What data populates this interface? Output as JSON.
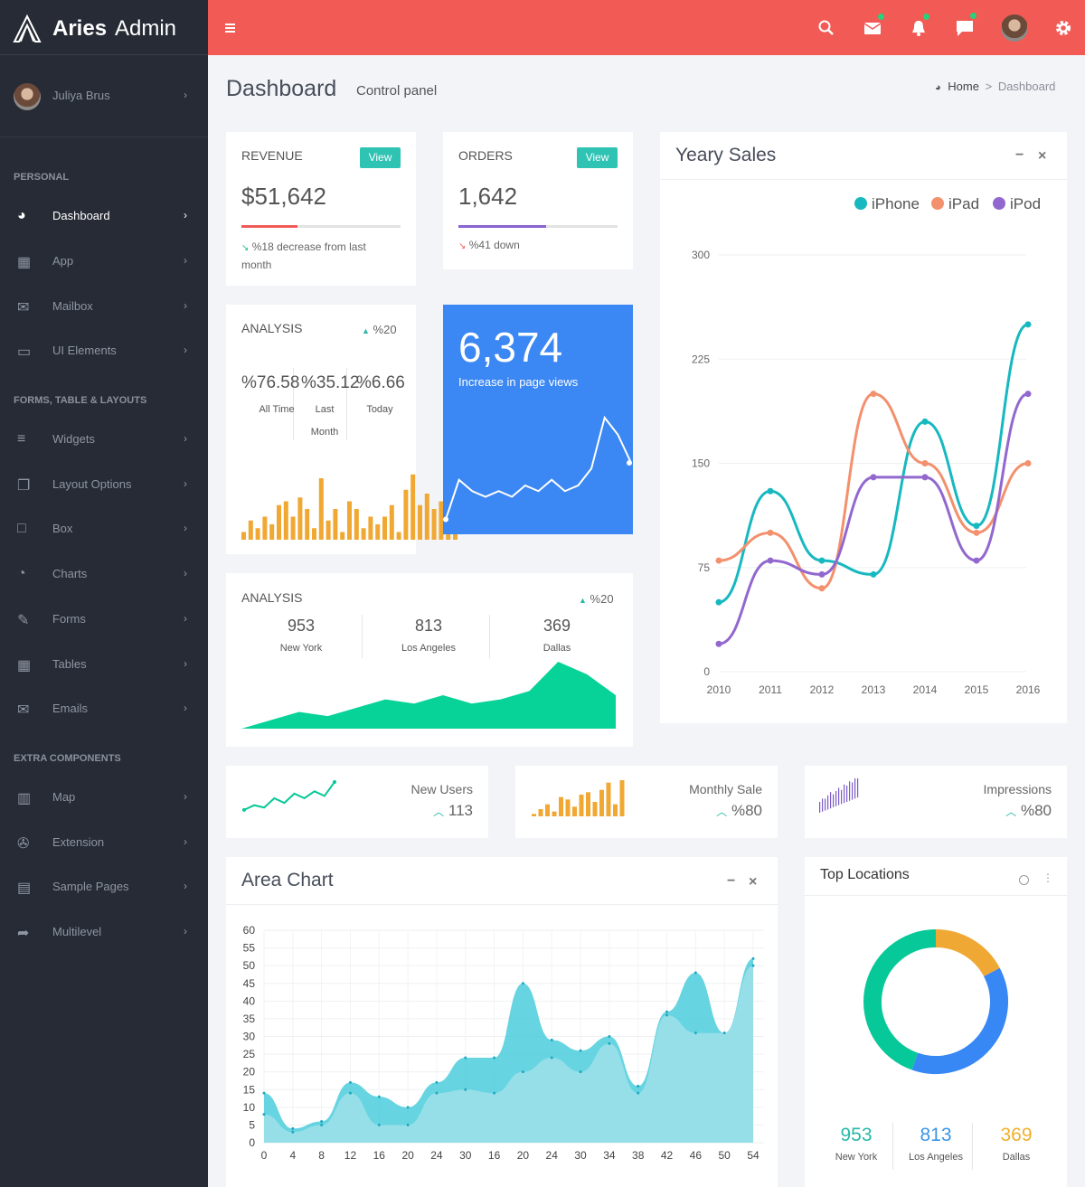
{
  "brand": {
    "bold": "Aries",
    "light": "Admin"
  },
  "user": {
    "name": "Juliya Brus"
  },
  "sidebar": {
    "sections": [
      "PERSONAL",
      "FORMS, TABLE & LAYOUTS",
      "EXTRA COMPONENTS"
    ],
    "items": [
      {
        "label": "Dashboard",
        "icon": "dashboard-icon"
      },
      {
        "label": "App",
        "icon": "grid-icon"
      },
      {
        "label": "Mailbox",
        "icon": "envelope-icon"
      },
      {
        "label": "UI Elements",
        "icon": "laptop-icon"
      },
      {
        "label": "Widgets",
        "icon": "bars-icon"
      },
      {
        "label": "Layout Options",
        "icon": "files-icon"
      },
      {
        "label": "Box",
        "icon": "square-icon"
      },
      {
        "label": "Charts",
        "icon": "pie-icon"
      },
      {
        "label": "Forms",
        "icon": "edit-icon"
      },
      {
        "label": "Tables",
        "icon": "table-icon"
      },
      {
        "label": "Emails",
        "icon": "envelope-open-icon"
      },
      {
        "label": "Map",
        "icon": "map-icon"
      },
      {
        "label": "Extension",
        "icon": "plug-icon"
      },
      {
        "label": "Sample Pages",
        "icon": "file-icon"
      },
      {
        "label": "Multilevel",
        "icon": "share-icon"
      }
    ]
  },
  "header": {
    "icons": [
      "menu-icon",
      "search-icon",
      "mail-icon",
      "bell-icon",
      "chat-icon",
      "avatar",
      "gear-icon"
    ]
  },
  "page": {
    "title": "Dashboard",
    "subtitle": "Control panel",
    "breadcrumb_home": "Home",
    "breadcrumb_sep": ">",
    "breadcrumb_current": "Dashboard"
  },
  "revenue": {
    "title": "REVENUE",
    "button": "View",
    "value": "$51,642",
    "progress": 0.35,
    "note": "%18 decrease from last month",
    "color": "#f05b56"
  },
  "orders": {
    "title": "ORDERS",
    "button": "View",
    "value": "1,642",
    "progress": 0.55,
    "note": "%41 down",
    "color": "#8b63d1"
  },
  "analysis1": {
    "title": "ANALYSIS",
    "delta": "%20",
    "stats": [
      {
        "value": "%76.58",
        "label": "All Time"
      },
      {
        "value": "%35.12",
        "label": "Last Month"
      },
      {
        "value": "%6.66",
        "label": "Today"
      }
    ],
    "bars": [
      2,
      5,
      3,
      6,
      4,
      9,
      10,
      6,
      11,
      8,
      3,
      16,
      5,
      8,
      2,
      10,
      8,
      3,
      6,
      4,
      6,
      9,
      2,
      13,
      17,
      9,
      12,
      8,
      10,
      4,
      2
    ]
  },
  "pageviews": {
    "value": "6,374",
    "label": "Increase in page views",
    "line": [
      2,
      9,
      7,
      6,
      7,
      6,
      8,
      7,
      9,
      7,
      8,
      11,
      20,
      17,
      12
    ]
  },
  "analysis2": {
    "title": "ANALYSIS",
    "delta": "%20",
    "stats": [
      {
        "value": "953",
        "label": "New York"
      },
      {
        "value": "813",
        "label": "Los Angeles"
      },
      {
        "value": "369",
        "label": "Dallas"
      }
    ],
    "area": [
      0,
      2,
      4,
      3,
      5,
      7,
      6,
      8,
      6,
      7,
      9,
      16,
      13,
      8
    ]
  },
  "yearly": {
    "title": "Yeary Sales"
  },
  "chart_data": [
    {
      "type": "line",
      "title": "Yeary Sales",
      "x": [
        "2010",
        "2011",
        "2012",
        "2013",
        "2014",
        "2015",
        "2016"
      ],
      "ylim": [
        0,
        300
      ],
      "yticks": [
        0,
        75,
        150,
        225,
        300
      ],
      "series": [
        {
          "name": "iPhone",
          "color": "#17b8c0",
          "values": [
            50,
            130,
            80,
            70,
            180,
            105,
            250
          ]
        },
        {
          "name": "iPad",
          "color": "#f3906d",
          "values": [
            80,
            100,
            60,
            200,
            150,
            100,
            150
          ]
        },
        {
          "name": "iPod",
          "color": "#9268cf",
          "values": [
            20,
            80,
            70,
            140,
            140,
            80,
            200
          ]
        }
      ],
      "legend": "top-right"
    },
    {
      "type": "area",
      "title": "Area Chart",
      "x": [
        "0",
        "4",
        "8",
        "12",
        "16",
        "20",
        "24",
        "30",
        "16",
        "20",
        "24",
        "30",
        "34",
        "38",
        "42",
        "46",
        "50",
        "54"
      ],
      "ylim": [
        0,
        60
      ],
      "yticks": [
        0,
        5,
        10,
        15,
        20,
        25,
        30,
        35,
        40,
        45,
        50,
        55,
        60
      ],
      "series": [
        {
          "name": "",
          "color": "#41c9d9",
          "values": [
            14,
            4,
            6,
            17,
            13,
            10,
            17,
            24,
            24,
            45,
            29,
            26,
            30,
            16,
            37,
            48,
            31,
            52
          ]
        },
        {
          "name": "",
          "color": "#a6e3ea",
          "values": [
            8,
            3,
            5,
            14,
            5,
            5,
            14,
            15,
            14,
            20,
            24,
            20,
            28,
            14,
            36,
            31,
            31,
            50
          ]
        }
      ]
    },
    {
      "type": "pie",
      "title": "Top Locations",
      "categories": [
        "New York",
        "Los Angeles",
        "Dallas"
      ],
      "values": [
        953,
        813,
        369
      ],
      "colors": [
        "#07c898",
        "#3787f5",
        "#f0a835"
      ]
    }
  ],
  "mini": [
    {
      "label": "New Users",
      "value": "113",
      "line": [
        2,
        4,
        3,
        7,
        5,
        9,
        7,
        10,
        8,
        14
      ]
    },
    {
      "label": "Monthly Sale",
      "value": "%80",
      "bars": [
        1,
        3,
        5,
        2,
        8,
        7,
        4,
        9,
        10,
        6,
        11,
        14,
        5,
        15
      ]
    },
    {
      "label": "Impressions",
      "value": "%80",
      "bars": [
        5,
        7,
        6,
        8,
        10,
        7,
        9,
        11,
        8,
        12,
        10,
        13,
        11,
        15,
        14
      ]
    }
  ],
  "area": {
    "title": "Area Chart"
  },
  "locations": {
    "title": "Top Locations",
    "stats": [
      {
        "value": "953",
        "label": "New York",
        "color": "#26b9a8"
      },
      {
        "value": "813",
        "label": "Los Angeles",
        "color": "#3a95e8"
      },
      {
        "value": "369",
        "label": "Dallas",
        "color": "#f0b02c"
      }
    ]
  },
  "window": {
    "minimize": "−",
    "close": "×"
  }
}
